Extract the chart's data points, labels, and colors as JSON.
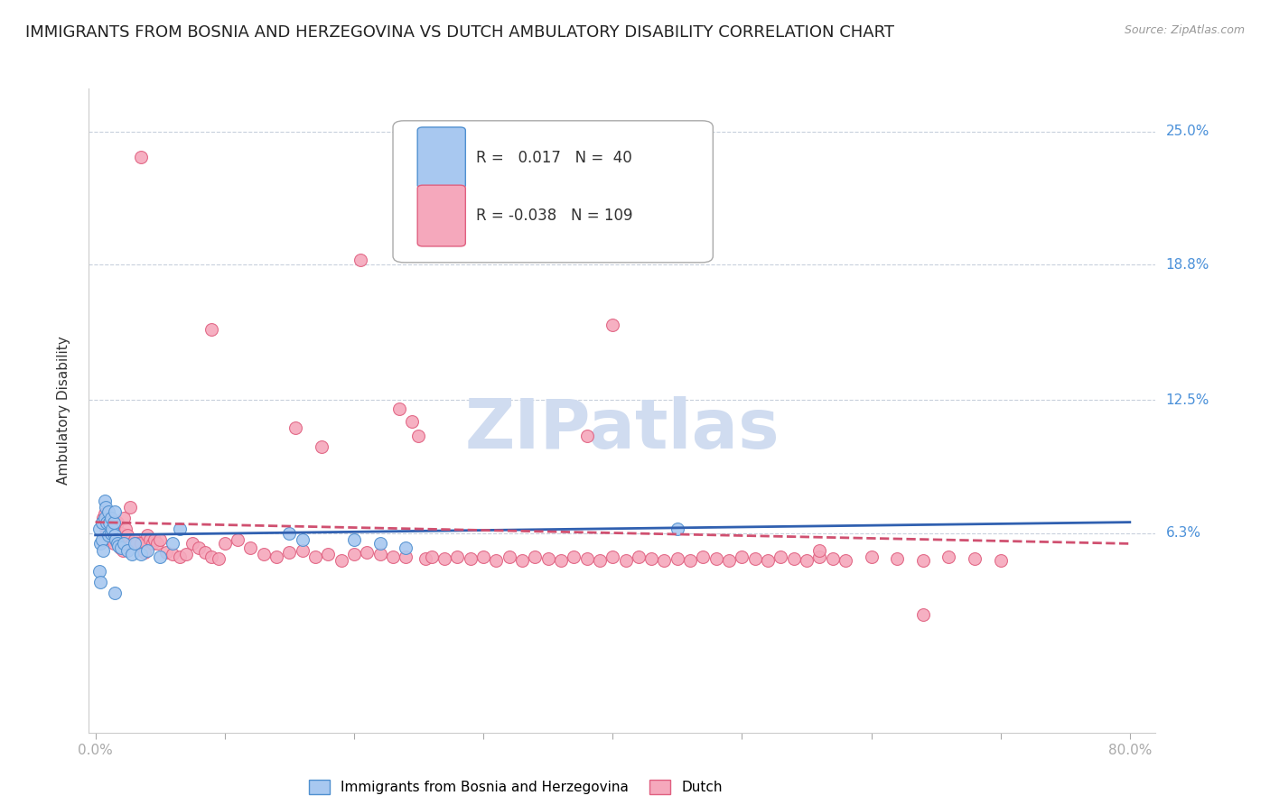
{
  "title": "IMMIGRANTS FROM BOSNIA AND HERZEGOVINA VS DUTCH AMBULATORY DISABILITY CORRELATION CHART",
  "source": "Source: ZipAtlas.com",
  "ylabel": "Ambulatory Disability",
  "xlim": [
    0.0,
    0.8
  ],
  "ylim": [
    -0.03,
    0.27
  ],
  "yticks": [
    0.063,
    0.125,
    0.188,
    0.25
  ],
  "ytick_labels": [
    "6.3%",
    "12.5%",
    "18.8%",
    "25.0%"
  ],
  "blue_R": 0.017,
  "blue_N": 40,
  "pink_R": -0.038,
  "pink_N": 109,
  "blue_color": "#A8C8F0",
  "pink_color": "#F5A8BC",
  "blue_edge_color": "#5090D0",
  "pink_edge_color": "#E06080",
  "blue_line_color": "#3060B0",
  "pink_line_color": "#D05070",
  "watermark_color": "#D0DCF0",
  "title_fontsize": 13,
  "axis_label_fontsize": 11,
  "tick_fontsize": 11,
  "legend_fontsize": 12,
  "blue_x": [
    0.003,
    0.004,
    0.005,
    0.005,
    0.006,
    0.007,
    0.007,
    0.008,
    0.009,
    0.01,
    0.01,
    0.011,
    0.012,
    0.012,
    0.013,
    0.014,
    0.015,
    0.015,
    0.016,
    0.017,
    0.018,
    0.02,
    0.022,
    0.025,
    0.028,
    0.03,
    0.035,
    0.04,
    0.05,
    0.06,
    0.065,
    0.15,
    0.16,
    0.2,
    0.22,
    0.24,
    0.003,
    0.004,
    0.015,
    0.45
  ],
  "blue_y": [
    0.065,
    0.058,
    0.068,
    0.06,
    0.055,
    0.078,
    0.07,
    0.075,
    0.068,
    0.062,
    0.073,
    0.068,
    0.07,
    0.063,
    0.065,
    0.068,
    0.062,
    0.073,
    0.06,
    0.058,
    0.057,
    0.056,
    0.058,
    0.055,
    0.053,
    0.058,
    0.053,
    0.055,
    0.052,
    0.058,
    0.065,
    0.063,
    0.06,
    0.06,
    0.058,
    0.056,
    0.045,
    0.04,
    0.035,
    0.065
  ],
  "pink_x": [
    0.005,
    0.006,
    0.007,
    0.008,
    0.009,
    0.01,
    0.011,
    0.012,
    0.013,
    0.014,
    0.015,
    0.016,
    0.017,
    0.018,
    0.019,
    0.02,
    0.021,
    0.022,
    0.023,
    0.025,
    0.027,
    0.028,
    0.03,
    0.032,
    0.035,
    0.038,
    0.04,
    0.042,
    0.044,
    0.046,
    0.048,
    0.05,
    0.055,
    0.06,
    0.065,
    0.07,
    0.075,
    0.08,
    0.085,
    0.09,
    0.095,
    0.1,
    0.11,
    0.12,
    0.13,
    0.14,
    0.15,
    0.155,
    0.16,
    0.17,
    0.175,
    0.18,
    0.19,
    0.2,
    0.205,
    0.21,
    0.22,
    0.23,
    0.235,
    0.24,
    0.245,
    0.25,
    0.255,
    0.26,
    0.27,
    0.28,
    0.29,
    0.3,
    0.31,
    0.32,
    0.33,
    0.34,
    0.35,
    0.36,
    0.37,
    0.38,
    0.39,
    0.4,
    0.41,
    0.42,
    0.43,
    0.44,
    0.45,
    0.46,
    0.47,
    0.48,
    0.49,
    0.5,
    0.51,
    0.52,
    0.53,
    0.54,
    0.55,
    0.56,
    0.57,
    0.58,
    0.6,
    0.62,
    0.64,
    0.66,
    0.68,
    0.7,
    0.38,
    0.4,
    0.035,
    0.09,
    0.38,
    0.56,
    0.64
  ],
  "pink_y": [
    0.068,
    0.07,
    0.072,
    0.065,
    0.063,
    0.07,
    0.062,
    0.065,
    0.06,
    0.058,
    0.063,
    0.06,
    0.068,
    0.058,
    0.056,
    0.063,
    0.055,
    0.07,
    0.065,
    0.062,
    0.075,
    0.058,
    0.06,
    0.058,
    0.058,
    0.054,
    0.062,
    0.06,
    0.058,
    0.06,
    0.058,
    0.06,
    0.054,
    0.053,
    0.052,
    0.053,
    0.058,
    0.056,
    0.054,
    0.052,
    0.051,
    0.058,
    0.06,
    0.056,
    0.053,
    0.052,
    0.054,
    0.112,
    0.055,
    0.052,
    0.103,
    0.053,
    0.05,
    0.053,
    0.19,
    0.054,
    0.053,
    0.052,
    0.121,
    0.052,
    0.115,
    0.108,
    0.051,
    0.052,
    0.051,
    0.052,
    0.051,
    0.052,
    0.05,
    0.052,
    0.05,
    0.052,
    0.051,
    0.05,
    0.052,
    0.051,
    0.05,
    0.052,
    0.05,
    0.052,
    0.051,
    0.05,
    0.051,
    0.05,
    0.052,
    0.051,
    0.05,
    0.052,
    0.051,
    0.05,
    0.052,
    0.051,
    0.05,
    0.052,
    0.051,
    0.05,
    0.052,
    0.051,
    0.05,
    0.052,
    0.051,
    0.05,
    0.108,
    0.16,
    0.238,
    0.158,
    0.21,
    0.055,
    0.025
  ],
  "blue_trend_x": [
    0.0,
    0.8
  ],
  "blue_trend_y": [
    0.062,
    0.068
  ],
  "pink_trend_x": [
    0.0,
    0.8
  ],
  "pink_trend_y": [
    0.068,
    0.058
  ]
}
